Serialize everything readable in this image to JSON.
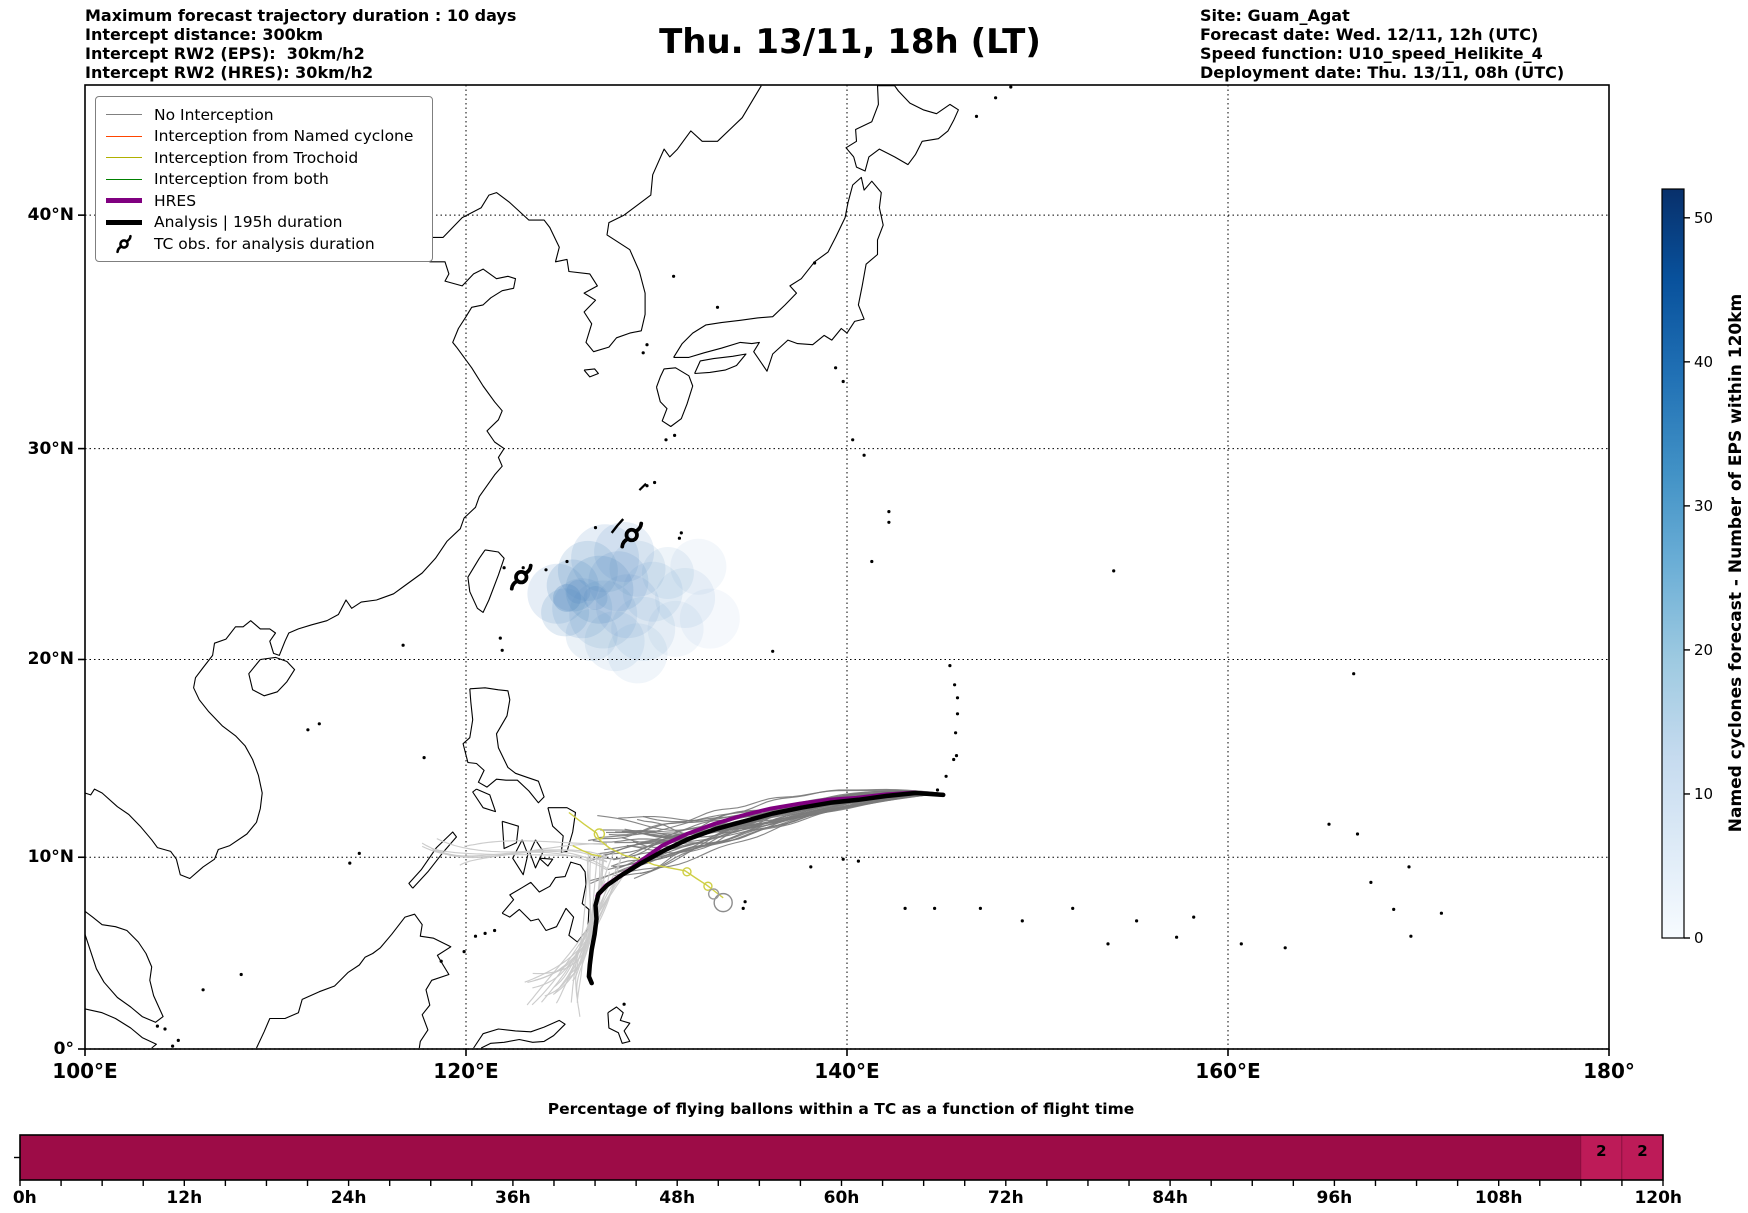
{
  "header_left": {
    "line1": "Maximum forecast trajectory duration : 10 days",
    "line2": "Intercept distance: 300km",
    "line3": "Intercept RW2 (EPS):  30km/h2",
    "line4": "Intercept RW2 (HRES): 30km/h2"
  },
  "title": "Thu. 13/11, 18h (LT)",
  "header_right": {
    "line1": "Site: Guam_Agat",
    "line2": "Forecast date: Wed. 12/11, 12h (UTC)",
    "line3": "Speed function: U10_speed_Helikite_4",
    "line4": "Deployment date: Thu. 13/11, 08h (UTC)"
  },
  "map": {
    "projection": "Mercator",
    "extent": {
      "lon_min": 100,
      "lon_max": 180,
      "lat_min": 0,
      "lat_max": 45
    },
    "y_ticks": [
      {
        "label": "0°",
        "lat": 0
      },
      {
        "label": "10°N",
        "lat": 10
      },
      {
        "label": "20°N",
        "lat": 20
      },
      {
        "label": "30°N",
        "lat": 30
      },
      {
        "label": "40°N",
        "lat": 40
      }
    ],
    "x_ticks": [
      {
        "label": "100°E",
        "lon": 100
      },
      {
        "label": "120°E",
        "lon": 120
      },
      {
        "label": "140°E",
        "lon": 140
      },
      {
        "label": "160°E",
        "lon": 160
      },
      {
        "label": "180°",
        "lon": 180
      }
    ],
    "legend": {
      "items": [
        {
          "label": "No Interception",
          "type": "line",
          "color": "#808080",
          "lw": 1.5
        },
        {
          "label": "Interception from Named cyclone",
          "type": "line",
          "color": "#ff4500",
          "lw": 1.5
        },
        {
          "label": "Interception from Trochoid",
          "type": "line",
          "color": "#b0b000",
          "lw": 1.5
        },
        {
          "label": "Interception from both",
          "type": "line",
          "color": "#008000",
          "lw": 1.5
        },
        {
          "label": "HRES",
          "type": "line",
          "color": "#800080",
          "lw": 5
        },
        {
          "label": "Analysis | 195h duration",
          "type": "line",
          "color": "#000000",
          "lw": 5
        },
        {
          "label": "TC obs. for analysis duration",
          "type": "tc-symbol",
          "color": "#000000"
        }
      ]
    }
  },
  "colorbar": {
    "label": "Named cyclones forecast - Number of EPS within 120km",
    "ticks": [
      0,
      10,
      20,
      30,
      40,
      50
    ],
    "vmin": 0,
    "vmax": 52,
    "colormap": "Blues"
  },
  "chart_data": [
    {
      "type": "line",
      "name": "tc_trajectory_map",
      "projection": "Mercator",
      "extent": [
        100,
        180,
        0,
        45
      ],
      "analysis_track": {
        "color": "#000000",
        "lw": 4.5,
        "lon": [
          145.05,
          143.6,
          142.1,
          140.6,
          139.1,
          137.6,
          136.1,
          134.6,
          133.1,
          131.7,
          130.4,
          129.2,
          128.2,
          127.4,
          126.95,
          126.8,
          126.85,
          126.75,
          126.6,
          126.5,
          126.45,
          126.6
        ],
        "lat": [
          13.2,
          13.3,
          13.15,
          12.95,
          12.8,
          12.55,
          12.25,
          11.85,
          11.45,
          10.95,
          10.35,
          9.7,
          9.1,
          8.55,
          8.1,
          7.5,
          6.8,
          6.0,
          5.2,
          4.4,
          3.8,
          3.45
        ]
      },
      "hres_track": {
        "color": "#800080",
        "lw": 4,
        "lon": [
          145.05,
          143.5,
          142.0,
          140.5,
          139.0,
          137.5,
          136.0,
          134.5,
          133.0,
          131.6,
          130.3,
          129.3,
          128.5
        ],
        "lat": [
          13.2,
          13.32,
          13.22,
          13.05,
          12.95,
          12.75,
          12.5,
          12.15,
          11.7,
          11.2,
          10.6,
          9.9,
          9.3
        ]
      },
      "hres_recent_track": {
        "color": "#e94fd8",
        "lw": 4.5,
        "lon": [
          128.5,
          127.9,
          127.3,
          126.9
        ],
        "lat": [
          9.3,
          8.9,
          8.5,
          8.0
        ]
      },
      "trochoid_tracks": [
        {
          "color": "#cfcf45",
          "lw": 1.4,
          "lon": [
            125.4,
            126.2,
            126.85,
            127.0,
            127.5,
            128.3,
            129.1,
            129.9,
            130.7,
            131.5,
            132.1,
            132.65,
            133.1,
            133.5
          ],
          "lat": [
            12.3,
            11.7,
            11.25,
            10.9,
            10.5,
            10.1,
            9.9,
            9.6,
            9.45,
            9.3,
            8.9,
            8.55,
            8.2,
            7.9
          ]
        },
        {
          "color": "#cfcf45",
          "lw": 1.4,
          "lon": [
            125.6,
            126.1,
            126.6,
            127.1
          ],
          "lat": [
            10.6,
            10.35,
            10.15,
            10.05
          ]
        }
      ],
      "trochoid_loops": [
        {
          "lon": 127.0,
          "lat": 11.2,
          "r": 5,
          "color": "#cfcf45"
        },
        {
          "lon": 131.6,
          "lat": 9.25,
          "r": 4,
          "color": "#cfcf45"
        },
        {
          "lon": 132.7,
          "lat": 8.5,
          "r": 4,
          "color": "#cfcf45"
        },
        {
          "lon": 133.5,
          "lat": 7.65,
          "r": 9,
          "color": "#8c8c8c"
        },
        {
          "lon": 133.0,
          "lat": 8.1,
          "r": 5,
          "color": "#9a9a9a"
        }
      ],
      "tc_obs_markers": [
        {
          "lon": 122.9,
          "lat": 24.0
        },
        {
          "lon": 128.7,
          "lat": 26.0
        }
      ],
      "eps_ensemble": {
        "count": 38,
        "seed": 2024,
        "color": "#7a7a7a",
        "origin": {
          "lon": 144.95,
          "lat": 13.28
        }
      },
      "no_interception_airborne": {
        "count_south": 14,
        "count_west": 7,
        "count_extra_south": 6,
        "color": "#c9c9c9"
      },
      "eps_density_blobs": {
        "color": "#5b8fc4",
        "circles": [
          [
            124.8,
            23.2,
            30,
            0.16
          ],
          [
            125.6,
            23.6,
            26,
            0.2
          ],
          [
            126.4,
            24.3,
            30,
            0.18
          ],
          [
            127.3,
            24.9,
            34,
            0.16
          ],
          [
            128.3,
            25.2,
            30,
            0.14
          ],
          [
            127.0,
            23.4,
            34,
            0.2
          ],
          [
            128.0,
            23.8,
            30,
            0.16
          ],
          [
            129.0,
            24.4,
            28,
            0.13
          ],
          [
            126.1,
            22.5,
            30,
            0.16
          ],
          [
            127.2,
            22.2,
            34,
            0.13
          ],
          [
            128.5,
            22.6,
            32,
            0.12
          ],
          [
            129.8,
            23.3,
            30,
            0.11
          ],
          [
            130.6,
            24.2,
            26,
            0.1
          ],
          [
            131.5,
            23.0,
            30,
            0.09
          ],
          [
            129.3,
            21.5,
            32,
            0.1
          ],
          [
            127.8,
            20.9,
            30,
            0.11
          ],
          [
            126.6,
            21.2,
            26,
            0.13
          ],
          [
            125.2,
            22.3,
            24,
            0.18
          ],
          [
            132.2,
            24.5,
            28,
            0.07
          ],
          [
            132.8,
            22.0,
            30,
            0.06
          ],
          [
            129.0,
            20.3,
            30,
            0.09
          ],
          [
            131.0,
            21.5,
            28,
            0.07
          ],
          [
            125.3,
            23.0,
            14,
            0.3
          ],
          [
            125.9,
            23.3,
            12,
            0.26
          ],
          [
            126.8,
            23.0,
            12,
            0.22
          ]
        ]
      }
    },
    {
      "type": "bar",
      "name": "pct_flying_balloons_in_tc",
      "title": "Percentage of flying ballons within a TC as a function of flight time",
      "bin_hours": 3,
      "x_range_hours": [
        0,
        120
      ],
      "values": [
        0,
        0,
        0,
        0,
        0,
        0,
        0,
        0,
        0,
        0,
        0,
        0,
        0,
        0,
        0,
        0,
        0,
        0,
        0,
        0,
        0,
        0,
        0,
        0,
        0,
        0,
        0,
        0,
        0,
        0,
        0,
        0,
        0,
        0,
        0,
        0,
        0,
        0,
        2,
        2
      ],
      "zero_color": "#9d0c47",
      "nonzero_color": "#bd1b58",
      "x_tick_labels": [
        "0h",
        "12h",
        "24h",
        "36h",
        "48h",
        "60h",
        "72h",
        "84h",
        "96h",
        "108h",
        "120h"
      ]
    }
  ]
}
